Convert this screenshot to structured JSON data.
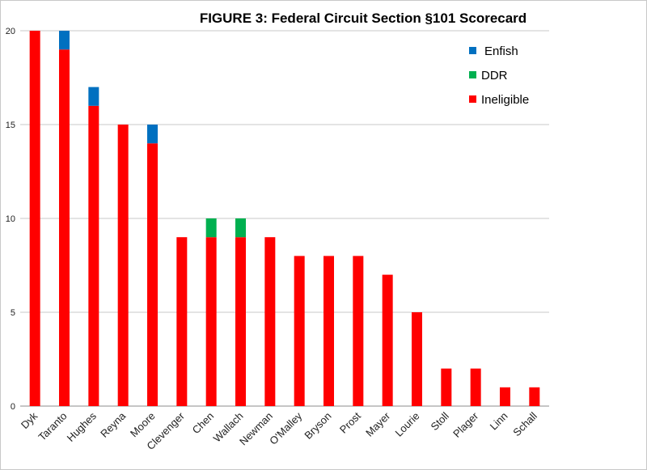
{
  "chart_data": {
    "type": "bar",
    "stacked": true,
    "title": "FIGURE 3: Federal Circuit Section §101 Scorecard",
    "xlabel": "",
    "ylabel": "",
    "ylim": [
      0,
      20
    ],
    "yticks": [
      0,
      5,
      10,
      15,
      20
    ],
    "grid": true,
    "legend_position": "top-right",
    "categories": [
      "Dyk",
      "Taranto",
      "Hughes",
      "Reyna",
      "Moore",
      "Clevenger",
      "Chen",
      "Wallach",
      "Newman",
      "O'Malley",
      "Bryson",
      "Prost",
      "Mayer",
      "Lourie",
      "Stoll",
      "Plager",
      "Linn",
      "Schall"
    ],
    "series": [
      {
        "name": "Ineligible",
        "color": "#ff0000",
        "values": [
          20,
          19,
          16,
          15,
          14,
          9,
          9,
          9,
          9,
          8,
          8,
          8,
          7,
          5,
          2,
          2,
          1,
          1
        ]
      },
      {
        "name": "DDR",
        "color": "#00b050",
        "values": [
          0,
          0,
          0,
          0,
          0,
          0,
          1,
          1,
          0,
          0,
          0,
          0,
          0,
          0,
          0,
          0,
          0,
          0
        ]
      },
      {
        "name": "Enfish",
        "color": "#0070c0",
        "values": [
          0,
          1,
          1,
          0,
          1,
          0,
          0,
          0,
          0,
          0,
          0,
          0,
          0,
          0,
          0,
          0,
          0,
          0
        ]
      }
    ],
    "legend": [
      "Enfish",
      "DDR",
      "Ineligible"
    ]
  }
}
